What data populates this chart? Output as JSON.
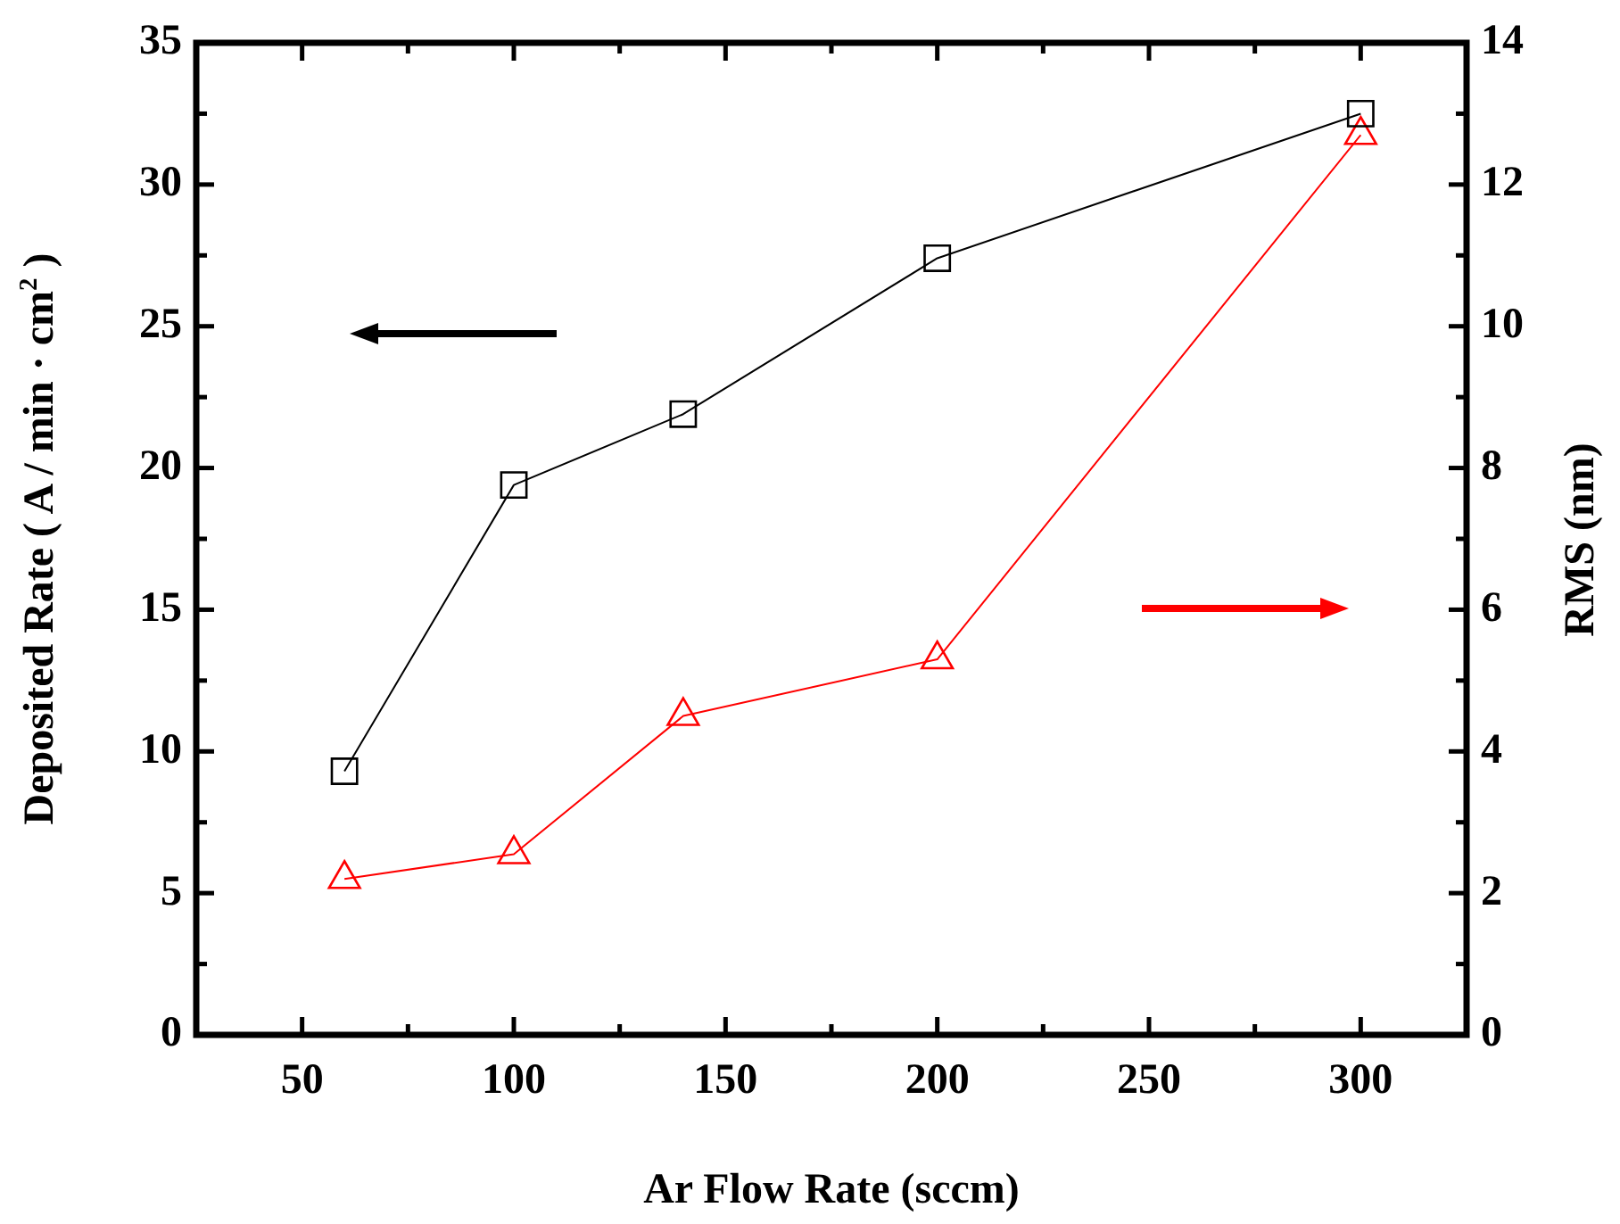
{
  "chart_data": {
    "type": "line",
    "xlabel": "Ar Flow Rate (sccm)",
    "ylabel": "Deposited Rate ( A / min · cm$^{2}$ )",
    "y2label": "RMS (nm)",
    "x": [
      60,
      100,
      140,
      200,
      300
    ],
    "series": [
      {
        "color": "#000000",
        "marker": "square",
        "values": [
          9.3,
          19.4,
          21.9,
          27.4,
          32.5
        ]
      },
      {
        "color": "#ff0000",
        "marker": "triangle",
        "axis": "y2",
        "values": [
          2.2,
          2.55,
          4.5,
          5.3,
          12.7
        ]
      }
    ],
    "xlim": [
      25,
      325
    ],
    "xticks": [
      50,
      {
        "value": 75,
        "label": null
      },
      100,
      {
        "value": 125,
        "label": null
      },
      150,
      {
        "value": 175,
        "label": null
      },
      200,
      {
        "value": 225,
        "label": null
      },
      250,
      {
        "value": 275,
        "label": null
      },
      300
    ],
    "ylim": [
      0,
      35
    ],
    "yticks": [
      0,
      {
        "value": 2.5,
        "label": null
      },
      5,
      {
        "value": 7.5,
        "label": null
      },
      10,
      {
        "value": 12.5,
        "label": null
      },
      15,
      {
        "value": 17.5,
        "label": null
      },
      20,
      {
        "value": 22.5,
        "label": null
      },
      25,
      {
        "value": 27.5,
        "label": null
      },
      30,
      {
        "value": 32.5,
        "label": null
      },
      35
    ],
    "y2lim": [
      0,
      14
    ],
    "y2ticks": [
      0,
      {
        "value": 1,
        "label": null
      },
      2,
      {
        "value": 3,
        "label": null
      },
      4,
      {
        "value": 5,
        "label": null
      },
      6,
      {
        "value": 7,
        "label": null
      },
      8,
      {
        "value": 9,
        "label": null
      },
      10,
      {
        "value": 11,
        "label": null
      },
      12,
      {
        "value": 13,
        "label": null
      },
      14
    ],
    "legend": false,
    "line_style": "solid"
  }
}
